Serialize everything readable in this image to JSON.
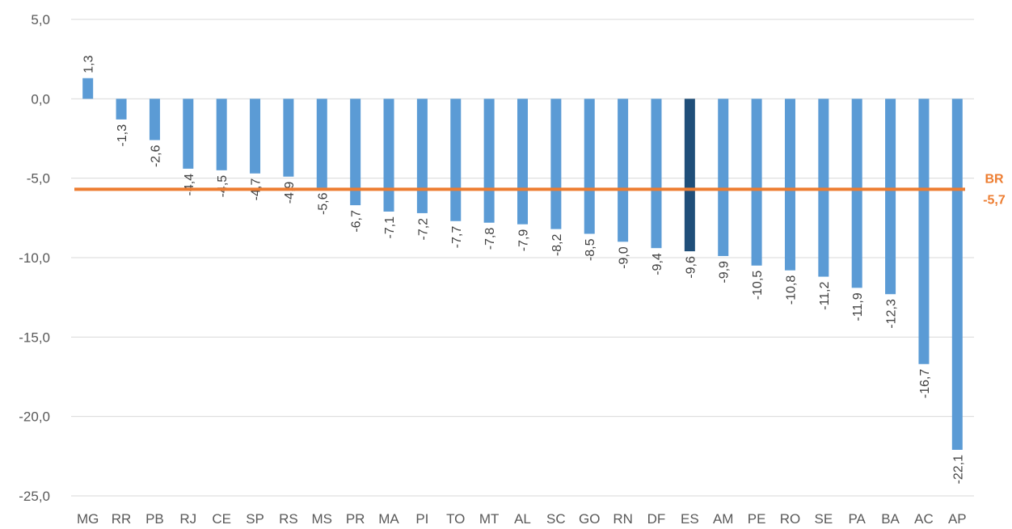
{
  "chart_data": {
    "type": "bar",
    "categories": [
      "MG",
      "RR",
      "PB",
      "RJ",
      "CE",
      "SP",
      "RS",
      "MS",
      "PR",
      "MA",
      "PI",
      "TO",
      "MT",
      "AL",
      "SC",
      "GO",
      "RN",
      "DF",
      "ES",
      "AM",
      "PE",
      "RO",
      "SE",
      "PA",
      "BA",
      "AC",
      "AP"
    ],
    "values": [
      1.3,
      -1.3,
      -2.6,
      -4.4,
      -4.5,
      -4.7,
      -4.9,
      -5.6,
      -6.7,
      -7.1,
      -7.2,
      -7.7,
      -7.8,
      -7.9,
      -8.2,
      -8.5,
      -9.0,
      -9.4,
      -9.6,
      -9.9,
      -10.5,
      -10.8,
      -11.2,
      -11.9,
      -12.3,
      -16.7,
      -22.1
    ],
    "value_labels": [
      "1,3",
      "-1,3",
      "-2,6",
      "-4,4",
      "-4,5",
      "-4,7",
      "-4,9",
      "-5,6",
      "-6,7",
      "-7,1",
      "-7,2",
      "-7,7",
      "-7,8",
      "-7,9",
      "-8,2",
      "-8,5",
      "-9,0",
      "-9,4",
      "-9,6",
      "-9,9",
      "-10,5",
      "-10,8",
      "-11,2",
      "-11,9",
      "-12,3",
      "-16,7",
      "-22,1"
    ],
    "ylim": [
      -25,
      5
    ],
    "yticks": [
      5,
      0,
      -5,
      -10,
      -15,
      -20,
      -25
    ],
    "ytick_labels": [
      "5,0",
      "0,0",
      "-5,0",
      "-10,0",
      "-15,0",
      "-20,0",
      "-25,0"
    ],
    "grid": true,
    "highlight": "ES",
    "colors": {
      "bar": "#5b9bd5",
      "highlight_bar": "#1f4e79",
      "reference_line": "#ed7d31",
      "grid": "#d9d9d9"
    },
    "reference_line": {
      "value": -5.7,
      "name": "BR",
      "value_label": "-5,7"
    }
  }
}
